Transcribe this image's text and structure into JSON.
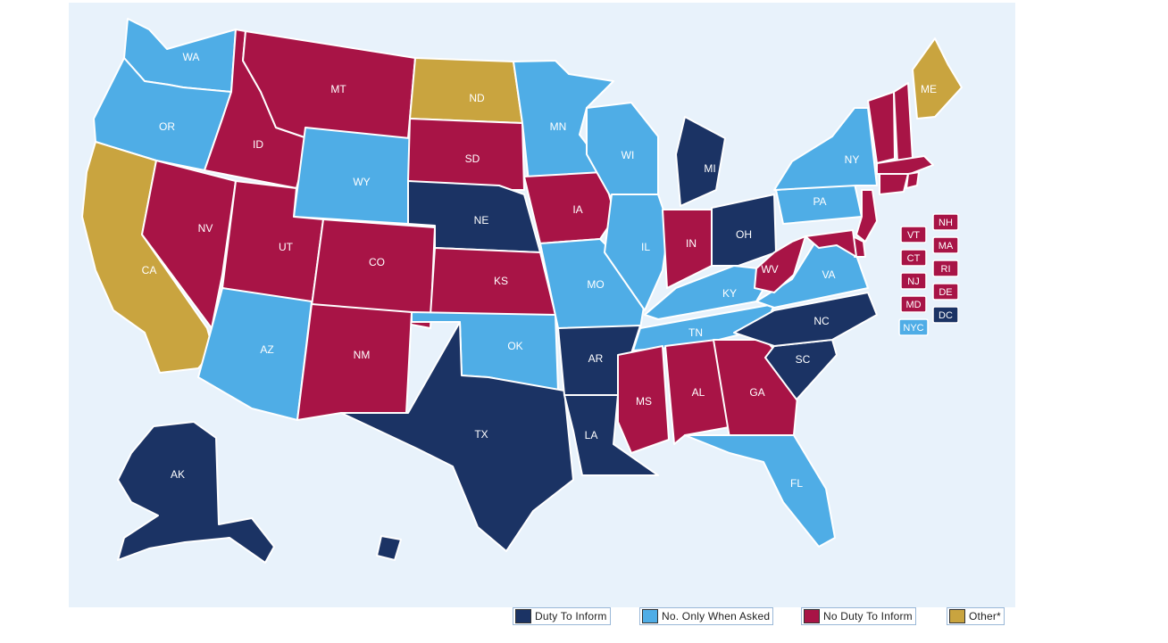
{
  "categories": {
    "duty": {
      "label": "Duty To Inform",
      "color": "#1b3364"
    },
    "asked": {
      "label": "No. Only When Asked",
      "color": "#4fade6"
    },
    "noduty": {
      "label": "No Duty To Inform",
      "color": "#a81446"
    },
    "other": {
      "label": "Other*",
      "color": "#c9a43f"
    }
  },
  "states": {
    "WA": "asked",
    "OR": "asked",
    "CA": "other",
    "ID": "noduty",
    "NV": "noduty",
    "MT": "noduty",
    "WY": "asked",
    "UT": "noduty",
    "AZ": "asked",
    "CO": "noduty",
    "NM": "noduty",
    "ND": "other",
    "SD": "noduty",
    "NE": "duty",
    "KS": "noduty",
    "OK": "asked",
    "TX": "duty",
    "MN": "asked",
    "IA": "noduty",
    "MO": "asked",
    "AR": "duty",
    "LA": "duty",
    "WI": "asked",
    "IL": "asked",
    "MI": "duty",
    "IN": "noduty",
    "OH": "duty",
    "KY": "asked",
    "TN": "asked",
    "MS": "noduty",
    "AL": "noduty",
    "GA": "noduty",
    "FL": "asked",
    "SC": "duty",
    "NC": "duty",
    "VA": "asked",
    "WV": "noduty",
    "PA": "asked",
    "NY": "asked",
    "ME": "other",
    "NJ": "noduty",
    "VT": "noduty",
    "NH": "noduty",
    "MA": "noduty",
    "CT": "noduty",
    "RI": "noduty",
    "DE": "noduty",
    "MD": "noduty",
    "DC": "duty",
    "AK": "duty",
    "HI": "duty",
    "NYC": "asked"
  },
  "small_states": [
    {
      "code": "VT",
      "cat": "noduty"
    },
    {
      "code": "NH",
      "cat": "noduty"
    },
    {
      "code": "CT",
      "cat": "noduty"
    },
    {
      "code": "MA",
      "cat": "noduty"
    },
    {
      "code": "NJ",
      "cat": "noduty"
    },
    {
      "code": "RI",
      "cat": "noduty"
    },
    {
      "code": "MD",
      "cat": "noduty"
    },
    {
      "code": "DE",
      "cat": "noduty"
    },
    {
      "code": "NYC",
      "cat": "asked"
    },
    {
      "code": "DC",
      "cat": "duty"
    }
  ],
  "legend": {
    "duty": "Duty To Inform",
    "asked": "No. Only When Asked",
    "noduty": "No Duty To Inform",
    "other": "Other*"
  }
}
